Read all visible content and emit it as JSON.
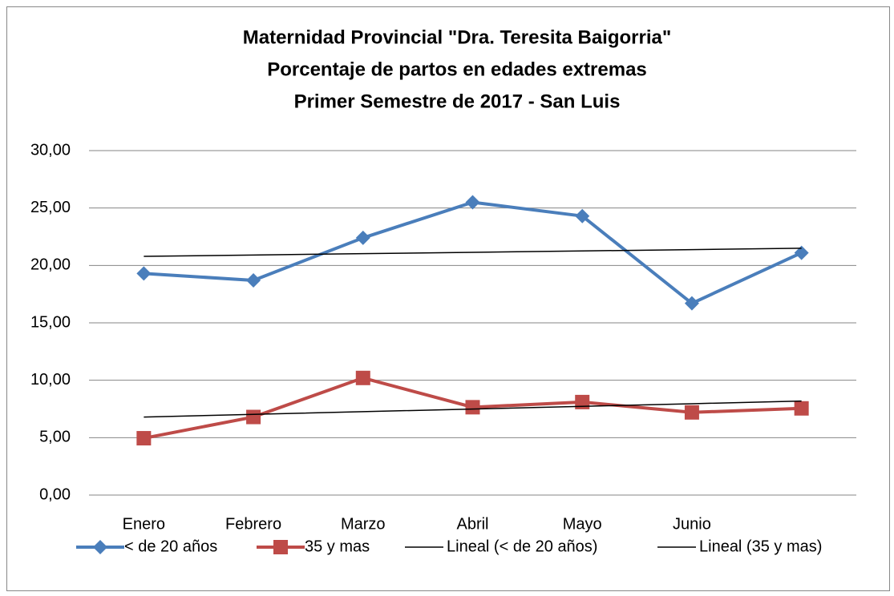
{
  "chart_data": {
    "type": "line",
    "title": [
      "Maternidad Provincial \"Dra. Teresita Baigorria\"",
      "Porcentaje de partos en edades extremas",
      "Primer Semestre de 2017 - San Luis"
    ],
    "categories": [
      "Enero",
      "Febrero",
      "Marzo",
      "Abril",
      "Mayo",
      "Junio",
      null
    ],
    "series": [
      {
        "name": "< de 20 años",
        "color": "#4a7ebb",
        "marker": "diamond",
        "values": [
          19.3,
          18.7,
          22.4,
          25.5,
          24.3,
          16.7,
          21.1
        ]
      },
      {
        "name": "35 y mas",
        "color": "#be4b48",
        "marker": "square",
        "values": [
          4.95,
          6.8,
          10.2,
          7.65,
          8.1,
          7.2,
          7.55
        ]
      },
      {
        "name": "Lineal (< de 20 años)",
        "color": "#000000",
        "trend_of": 0
      },
      {
        "name": "Lineal (35 y mas)",
        "color": "#000000",
        "trend_of": 1
      }
    ],
    "ylim": [
      0,
      30
    ],
    "yticks": [
      {
        "value": 0,
        "label": "0,00"
      },
      {
        "value": 5,
        "label": "5,00"
      },
      {
        "value": 10,
        "label": "10,00"
      },
      {
        "value": 15,
        "label": "15,00"
      },
      {
        "value": 20,
        "label": "20,00"
      },
      {
        "value": 25,
        "label": "25,00"
      },
      {
        "value": 30,
        "label": "30,00"
      }
    ],
    "grid": true,
    "legend": "bottom"
  }
}
